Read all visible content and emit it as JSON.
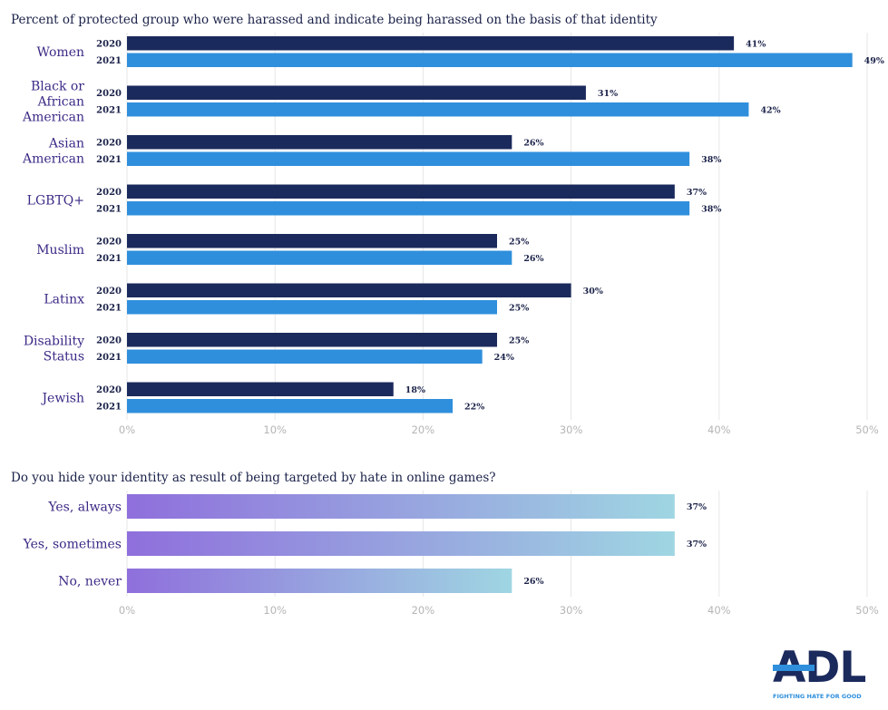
{
  "chart_data": [
    {
      "type": "bar",
      "orientation": "horizontal",
      "title": "Percent of protected group who were harassed and indicate being harassed on the basis of that identity",
      "categories": [
        [
          "Women"
        ],
        [
          "Black or",
          "African",
          "American"
        ],
        [
          "Asian",
          "American"
        ],
        [
          "LGBTQ+"
        ],
        [
          "Muslim"
        ],
        [
          "Latinx"
        ],
        [
          "Disability",
          "Status"
        ],
        [
          "Jewish"
        ]
      ],
      "series": [
        {
          "name": "2020",
          "color": "#1b2a5c",
          "values": [
            41,
            31,
            26,
            37,
            25,
            30,
            25,
            18
          ]
        },
        {
          "name": "2021",
          "color": "#2f8fdc",
          "values": [
            49,
            42,
            38,
            38,
            26,
            25,
            24,
            22
          ]
        }
      ],
      "value_suffix": "%",
      "xlim": [
        0,
        50
      ],
      "ticks": [
        "0%",
        "10%",
        "20%",
        "30%",
        "40%",
        "50%"
      ],
      "grid": true
    },
    {
      "type": "bar",
      "orientation": "horizontal",
      "title": "Do you hide your identity as result of being targeted by hate in online games?",
      "categories": [
        "Yes, always",
        "Yes, sometimes",
        "No, never"
      ],
      "values": [
        37,
        37,
        26
      ],
      "value_suffix": "%",
      "gradient": [
        "#8f6fdc",
        "#9fd6e2"
      ],
      "xlim": [
        0,
        50
      ],
      "ticks": [
        "0%",
        "10%",
        "20%",
        "30%",
        "40%",
        "50%"
      ],
      "grid": true
    }
  ],
  "logo": {
    "name": "ADL",
    "tagline": "FIGHTING HATE FOR GOOD",
    "color_dark": "#1b2a5c",
    "color_accent": "#2f8fdc"
  }
}
